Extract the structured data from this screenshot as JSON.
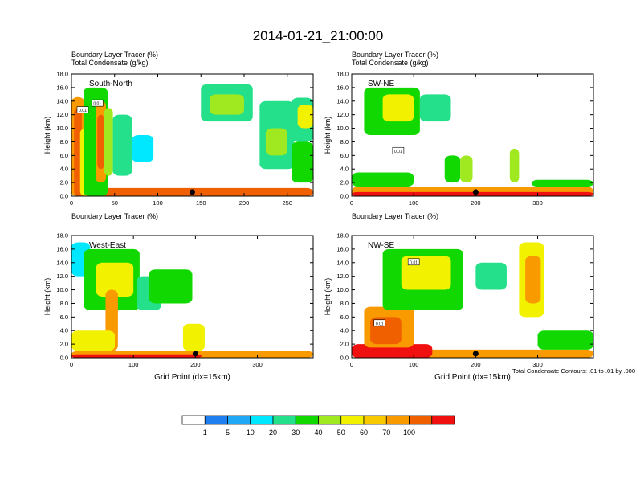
{
  "figure": {
    "title": "2014-01-21_21:00:00",
    "note": "Total Condensate Contours: .01 to .01 by .000"
  },
  "colors": {
    "levels": [
      "#ffffff",
      "#1f7ef0",
      "#20a8f6",
      "#00e8ff",
      "#24e08a",
      "#10d800",
      "#a0e820",
      "#f2f200",
      "#f8c800",
      "#f89a00",
      "#f06000",
      "#f01010"
    ],
    "contour": "#000000",
    "marker": "#000000"
  },
  "chart_data": [
    {
      "type": "heatmap",
      "panel": "top-left",
      "label": "South-North",
      "title_line1": "Boundary Layer Tracer",
      "title_line1_unit": "(%)",
      "title_line2": "Total Condensate",
      "title_line2_unit": "(g/kg)",
      "xlabel": "",
      "ylabel": "Height (km)",
      "xlim": [
        0,
        280
      ],
      "ylim": [
        0,
        18
      ],
      "xticks": [
        0,
        50,
        100,
        150,
        200,
        250
      ],
      "yticks": [
        0.0,
        2.0,
        4.0,
        6.0,
        8.0,
        10.0,
        12.0,
        14.0,
        16.0,
        18.0
      ],
      "marker_x": 140,
      "contour_labels": [
        {
          "x": 13,
          "y": 12.6,
          "text": "0.01"
        },
        {
          "x": 30,
          "y": 13.6,
          "text": "0.01"
        }
      ],
      "features": [
        {
          "x": [
            0,
            280
          ],
          "y": [
            0,
            1.2
          ],
          "v": 70
        },
        {
          "x": [
            0,
            15
          ],
          "y": [
            0,
            14.6
          ],
          "v": 60
        },
        {
          "x": [
            3,
            12
          ],
          "y": [
            0,
            13
          ],
          "v": 80
        },
        {
          "x": [
            10,
            24
          ],
          "y": [
            0,
            10
          ],
          "v": 40
        },
        {
          "x": [
            14,
            42
          ],
          "y": [
            0,
            16
          ],
          "v": 20
        },
        {
          "x": [
            28,
            40
          ],
          "y": [
            2,
            14
          ],
          "v": 60
        },
        {
          "x": [
            30,
            38
          ],
          "y": [
            4,
            12
          ],
          "v": 80
        },
        {
          "x": [
            38,
            48
          ],
          "y": [
            3,
            13
          ],
          "v": 30
        },
        {
          "x": [
            48,
            70
          ],
          "y": [
            3,
            12
          ],
          "v": 10
        },
        {
          "x": [
            70,
            95
          ],
          "y": [
            5,
            9
          ],
          "v": 5
        },
        {
          "x": [
            150,
            210
          ],
          "y": [
            11,
            16.5
          ],
          "v": 10
        },
        {
          "x": [
            160,
            200
          ],
          "y": [
            12,
            15
          ],
          "v": 30
        },
        {
          "x": [
            218,
            258
          ],
          "y": [
            4,
            14
          ],
          "v": 10
        },
        {
          "x": [
            225,
            250
          ],
          "y": [
            6,
            10
          ],
          "v": 30
        },
        {
          "x": [
            255,
            280
          ],
          "y": [
            8,
            14.5
          ],
          "v": 10
        },
        {
          "x": [
            262,
            280
          ],
          "y": [
            10,
            13.5
          ],
          "v": 40
        },
        {
          "x": [
            255,
            280
          ],
          "y": [
            2,
            8
          ],
          "v": 20
        }
      ]
    },
    {
      "type": "heatmap",
      "panel": "top-right",
      "label": "SW-NE",
      "title_line1": "Boundary Layer Tracer",
      "title_line1_unit": "(%)",
      "title_line2": "Total Condensate",
      "title_line2_unit": "(g/kg)",
      "xlabel": "",
      "ylabel": "Height (km)",
      "xlim": [
        0,
        390
      ],
      "ylim": [
        0,
        18
      ],
      "xticks": [
        0,
        100,
        200,
        300
      ],
      "yticks": [
        0.0,
        2.0,
        4.0,
        6.0,
        8.0,
        10.0,
        12.0,
        14.0,
        16.0,
        18.0
      ],
      "marker_x": 200,
      "contour_labels": [
        {
          "x": 75,
          "y": 6.6,
          "text": "0.01"
        }
      ],
      "features": [
        {
          "x": [
            0,
            390
          ],
          "y": [
            0,
            1.4
          ],
          "v": 60
        },
        {
          "x": [
            0,
            390
          ],
          "y": [
            0,
            0.6
          ],
          "v": 100
        },
        {
          "x": [
            0,
            100
          ],
          "y": [
            1.4,
            3.5
          ],
          "v": 20
        },
        {
          "x": [
            20,
            110
          ],
          "y": [
            9,
            16
          ],
          "v": 20
        },
        {
          "x": [
            50,
            100
          ],
          "y": [
            11,
            15
          ],
          "v": 40
        },
        {
          "x": [
            110,
            160
          ],
          "y": [
            11,
            15
          ],
          "v": 10
        },
        {
          "x": [
            150,
            175
          ],
          "y": [
            2,
            6
          ],
          "v": 20
        },
        {
          "x": [
            175,
            195
          ],
          "y": [
            2,
            6
          ],
          "v": 30
        },
        {
          "x": [
            255,
            270
          ],
          "y": [
            2,
            7
          ],
          "v": 30
        },
        {
          "x": [
            290,
            390
          ],
          "y": [
            1.4,
            2.4
          ],
          "v": 20
        }
      ]
    },
    {
      "type": "heatmap",
      "panel": "bottom-left",
      "label": "West-East",
      "title_line1": "Boundary Layer Tracer",
      "title_line1_unit": "(%)",
      "title_line2": "",
      "title_line2_unit": "",
      "xlabel": "Grid Point (dx=15km)",
      "ylabel": "Height (km)",
      "xlim": [
        0,
        390
      ],
      "ylim": [
        0,
        18
      ],
      "xticks": [
        0,
        100,
        200,
        300
      ],
      "yticks": [
        0.0,
        2.0,
        4.0,
        6.0,
        8.0,
        10.0,
        12.0,
        14.0,
        16.0,
        18.0
      ],
      "marker_x": 200,
      "contour_labels": [],
      "features": [
        {
          "x": [
            0,
            390
          ],
          "y": [
            0,
            1.0
          ],
          "v": 60
        },
        {
          "x": [
            0,
            210
          ],
          "y": [
            0,
            0.5
          ],
          "v": 100
        },
        {
          "x": [
            0,
            30
          ],
          "y": [
            12,
            17
          ],
          "v": 5
        },
        {
          "x": [
            20,
            110
          ],
          "y": [
            7,
            16
          ],
          "v": 20
        },
        {
          "x": [
            40,
            100
          ],
          "y": [
            9,
            14
          ],
          "v": 40
        },
        {
          "x": [
            55,
            75
          ],
          "y": [
            1,
            10
          ],
          "v": 60
        },
        {
          "x": [
            0,
            70
          ],
          "y": [
            1,
            4
          ],
          "v": 40
        },
        {
          "x": [
            105,
            145
          ],
          "y": [
            7,
            12
          ],
          "v": 10
        },
        {
          "x": [
            125,
            195
          ],
          "y": [
            8,
            13
          ],
          "v": 20
        },
        {
          "x": [
            180,
            215
          ],
          "y": [
            1,
            5
          ],
          "v": 40
        }
      ]
    },
    {
      "type": "heatmap",
      "panel": "bottom-right",
      "label": "NW-SE",
      "title_line1": "Boundary Layer Tracer",
      "title_line1_unit": "(%)",
      "title_line2": "",
      "title_line2_unit": "",
      "xlabel": "Grid Point (dx=15km)",
      "ylabel": "Height (km)",
      "xlim": [
        0,
        390
      ],
      "ylim": [
        0,
        18
      ],
      "xticks": [
        0,
        100,
        200,
        300
      ],
      "yticks": [
        0.0,
        2.0,
        4.0,
        6.0,
        8.0,
        10.0,
        12.0,
        14.0,
        16.0,
        18.0
      ],
      "marker_x": 200,
      "contour_labels": [
        {
          "x": 100,
          "y": 14,
          "text": "0.01"
        },
        {
          "x": 45,
          "y": 5,
          "text": "0.01"
        }
      ],
      "features": [
        {
          "x": [
            0,
            390
          ],
          "y": [
            0,
            1.2
          ],
          "v": 60
        },
        {
          "x": [
            0,
            130
          ],
          "y": [
            0,
            2
          ],
          "v": 100
        },
        {
          "x": [
            20,
            100
          ],
          "y": [
            1.5,
            7.5
          ],
          "v": 60
        },
        {
          "x": [
            30,
            80
          ],
          "y": [
            2,
            6
          ],
          "v": 80
        },
        {
          "x": [
            50,
            180
          ],
          "y": [
            7,
            16
          ],
          "v": 20
        },
        {
          "x": [
            80,
            160
          ],
          "y": [
            10,
            15
          ],
          "v": 40
        },
        {
          "x": [
            270,
            310
          ],
          "y": [
            6,
            17
          ],
          "v": 40
        },
        {
          "x": [
            280,
            305
          ],
          "y": [
            8,
            15
          ],
          "v": 60
        },
        {
          "x": [
            200,
            250
          ],
          "y": [
            10,
            14
          ],
          "v": 10
        },
        {
          "x": [
            300,
            390
          ],
          "y": [
            1.2,
            4
          ],
          "v": 20
        }
      ]
    }
  ],
  "legend": {
    "labels": [
      "1",
      "5",
      "10",
      "20",
      "30",
      "40",
      "50",
      "60",
      "70",
      "100"
    ],
    "orientation": "horizontal",
    "position": "bottom-center"
  }
}
